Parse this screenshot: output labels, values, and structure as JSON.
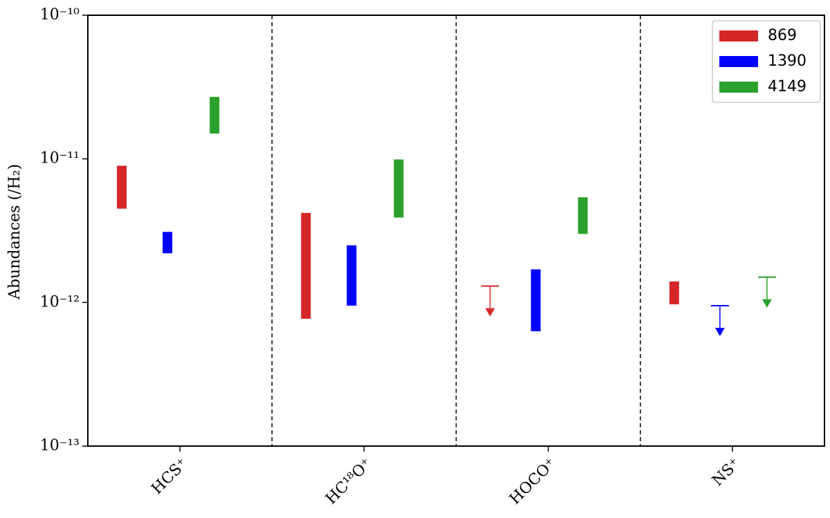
{
  "chart_data": {
    "type": "range_bar",
    "ylabel": "Abundances (/H₂)",
    "categories": [
      "HCS⁺",
      "HC¹⁸O⁺",
      "HOCO⁺",
      "NS⁺"
    ],
    "log_y": true,
    "ylim": [
      1e-13,
      1e-10
    ],
    "yticks": [
      {
        "value": 1e-13,
        "label": "10⁻¹³"
      },
      {
        "value": 1e-12,
        "label": "10⁻¹²"
      },
      {
        "value": 1e-11,
        "label": "10⁻¹¹"
      },
      {
        "value": 1e-10,
        "label": "10⁻¹⁰"
      }
    ],
    "legend": "upper right",
    "series": [
      {
        "name": "869",
        "color": "#d62728",
        "low": [
          4.5e-12,
          7.7e-13,
          null,
          9.7e-13
        ],
        "high": [
          8.95e-12,
          4.2e-12,
          null,
          1.4e-12
        ],
        "upper_limits": [
          null,
          null,
          1.3e-12,
          null
        ]
      },
      {
        "name": "1390",
        "color": "#0000ff",
        "low": [
          2.2e-12,
          9.5e-13,
          6.3e-13,
          null
        ],
        "high": [
          3.1e-12,
          2.5e-12,
          1.7e-12,
          null
        ],
        "upper_limits": [
          null,
          null,
          null,
          9.5e-13
        ]
      },
      {
        "name": "4149",
        "color": "#2ca02c",
        "low": [
          1.5e-11,
          3.9e-12,
          3e-12,
          null
        ],
        "high": [
          2.7e-11,
          9.9e-12,
          5.4e-12,
          null
        ],
        "upper_limits": [
          null,
          null,
          null,
          1.5e-12
        ]
      }
    ]
  }
}
